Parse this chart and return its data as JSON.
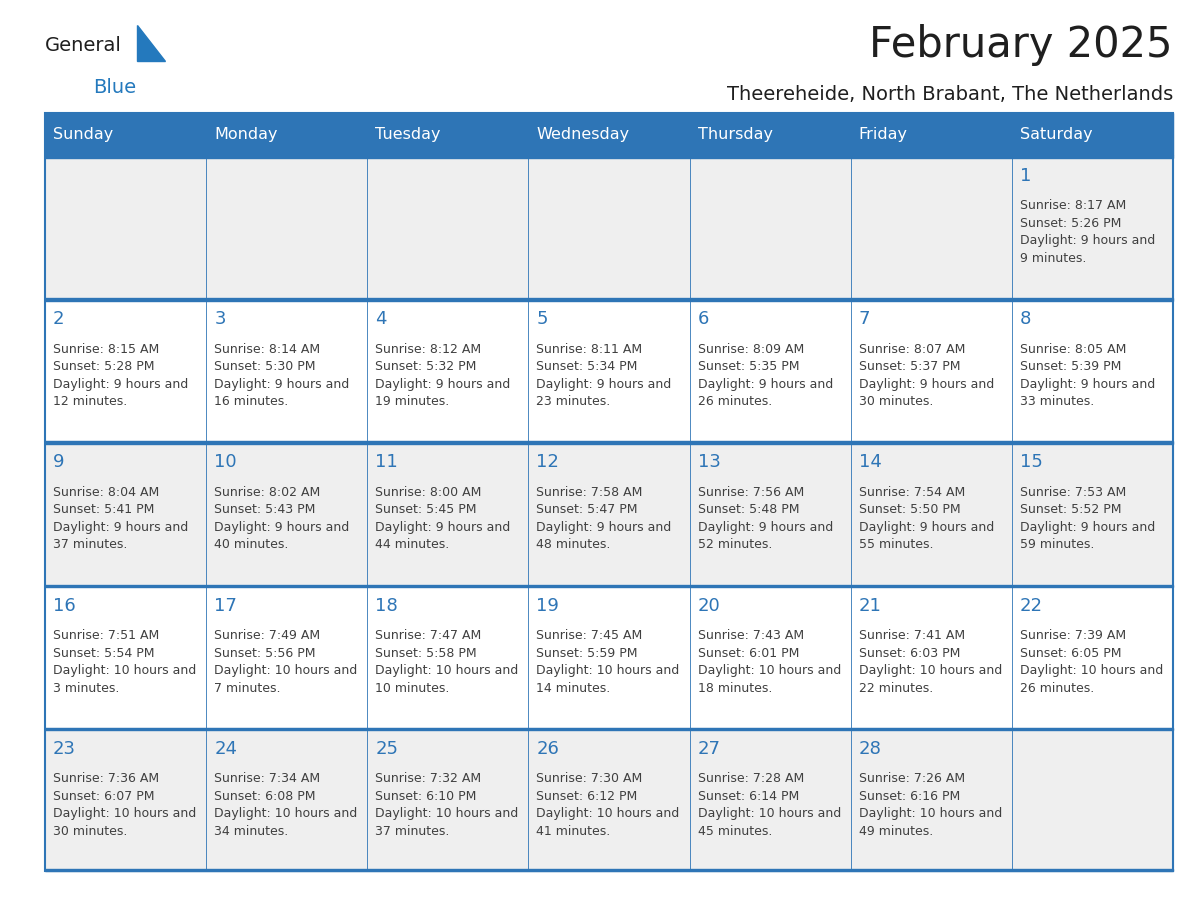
{
  "title": "February 2025",
  "subtitle": "Theereheide, North Brabant, The Netherlands",
  "header_bg": "#2E75B6",
  "header_text": "#FFFFFF",
  "cell_bg_white": "#FFFFFF",
  "cell_bg_gray": "#EFEFEF",
  "border_color": "#2E75B6",
  "day_headers": [
    "Sunday",
    "Monday",
    "Tuesday",
    "Wednesday",
    "Thursday",
    "Friday",
    "Saturday"
  ],
  "title_color": "#1F1F1F",
  "subtitle_color": "#1F1F1F",
  "number_color": "#2E75B6",
  "text_color": "#404040",
  "logo_general_color": "#1F1F1F",
  "logo_blue_color": "#2479BD",
  "days": [
    {
      "day": 1,
      "col": 6,
      "row": 0,
      "sunrise": "8:17 AM",
      "sunset": "5:26 PM",
      "daylight": "9 hours and 9 minutes."
    },
    {
      "day": 2,
      "col": 0,
      "row": 1,
      "sunrise": "8:15 AM",
      "sunset": "5:28 PM",
      "daylight": "9 hours and 12 minutes."
    },
    {
      "day": 3,
      "col": 1,
      "row": 1,
      "sunrise": "8:14 AM",
      "sunset": "5:30 PM",
      "daylight": "9 hours and 16 minutes."
    },
    {
      "day": 4,
      "col": 2,
      "row": 1,
      "sunrise": "8:12 AM",
      "sunset": "5:32 PM",
      "daylight": "9 hours and 19 minutes."
    },
    {
      "day": 5,
      "col": 3,
      "row": 1,
      "sunrise": "8:11 AM",
      "sunset": "5:34 PM",
      "daylight": "9 hours and 23 minutes."
    },
    {
      "day": 6,
      "col": 4,
      "row": 1,
      "sunrise": "8:09 AM",
      "sunset": "5:35 PM",
      "daylight": "9 hours and 26 minutes."
    },
    {
      "day": 7,
      "col": 5,
      "row": 1,
      "sunrise": "8:07 AM",
      "sunset": "5:37 PM",
      "daylight": "9 hours and 30 minutes."
    },
    {
      "day": 8,
      "col": 6,
      "row": 1,
      "sunrise": "8:05 AM",
      "sunset": "5:39 PM",
      "daylight": "9 hours and 33 minutes."
    },
    {
      "day": 9,
      "col": 0,
      "row": 2,
      "sunrise": "8:04 AM",
      "sunset": "5:41 PM",
      "daylight": "9 hours and 37 minutes."
    },
    {
      "day": 10,
      "col": 1,
      "row": 2,
      "sunrise": "8:02 AM",
      "sunset": "5:43 PM",
      "daylight": "9 hours and 40 minutes."
    },
    {
      "day": 11,
      "col": 2,
      "row": 2,
      "sunrise": "8:00 AM",
      "sunset": "5:45 PM",
      "daylight": "9 hours and 44 minutes."
    },
    {
      "day": 12,
      "col": 3,
      "row": 2,
      "sunrise": "7:58 AM",
      "sunset": "5:47 PM",
      "daylight": "9 hours and 48 minutes."
    },
    {
      "day": 13,
      "col": 4,
      "row": 2,
      "sunrise": "7:56 AM",
      "sunset": "5:48 PM",
      "daylight": "9 hours and 52 minutes."
    },
    {
      "day": 14,
      "col": 5,
      "row": 2,
      "sunrise": "7:54 AM",
      "sunset": "5:50 PM",
      "daylight": "9 hours and 55 minutes."
    },
    {
      "day": 15,
      "col": 6,
      "row": 2,
      "sunrise": "7:53 AM",
      "sunset": "5:52 PM",
      "daylight": "9 hours and 59 minutes."
    },
    {
      "day": 16,
      "col": 0,
      "row": 3,
      "sunrise": "7:51 AM",
      "sunset": "5:54 PM",
      "daylight": "10 hours and 3 minutes."
    },
    {
      "day": 17,
      "col": 1,
      "row": 3,
      "sunrise": "7:49 AM",
      "sunset": "5:56 PM",
      "daylight": "10 hours and 7 minutes."
    },
    {
      "day": 18,
      "col": 2,
      "row": 3,
      "sunrise": "7:47 AM",
      "sunset": "5:58 PM",
      "daylight": "10 hours and 10 minutes."
    },
    {
      "day": 19,
      "col": 3,
      "row": 3,
      "sunrise": "7:45 AM",
      "sunset": "5:59 PM",
      "daylight": "10 hours and 14 minutes."
    },
    {
      "day": 20,
      "col": 4,
      "row": 3,
      "sunrise": "7:43 AM",
      "sunset": "6:01 PM",
      "daylight": "10 hours and 18 minutes."
    },
    {
      "day": 21,
      "col": 5,
      "row": 3,
      "sunrise": "7:41 AM",
      "sunset": "6:03 PM",
      "daylight": "10 hours and 22 minutes."
    },
    {
      "day": 22,
      "col": 6,
      "row": 3,
      "sunrise": "7:39 AM",
      "sunset": "6:05 PM",
      "daylight": "10 hours and 26 minutes."
    },
    {
      "day": 23,
      "col": 0,
      "row": 4,
      "sunrise": "7:36 AM",
      "sunset": "6:07 PM",
      "daylight": "10 hours and 30 minutes."
    },
    {
      "day": 24,
      "col": 1,
      "row": 4,
      "sunrise": "7:34 AM",
      "sunset": "6:08 PM",
      "daylight": "10 hours and 34 minutes."
    },
    {
      "day": 25,
      "col": 2,
      "row": 4,
      "sunrise": "7:32 AM",
      "sunset": "6:10 PM",
      "daylight": "10 hours and 37 minutes."
    },
    {
      "day": 26,
      "col": 3,
      "row": 4,
      "sunrise": "7:30 AM",
      "sunset": "6:12 PM",
      "daylight": "10 hours and 41 minutes."
    },
    {
      "day": 27,
      "col": 4,
      "row": 4,
      "sunrise": "7:28 AM",
      "sunset": "6:14 PM",
      "daylight": "10 hours and 45 minutes."
    },
    {
      "day": 28,
      "col": 5,
      "row": 4,
      "sunrise": "7:26 AM",
      "sunset": "6:16 PM",
      "daylight": "10 hours and 49 minutes."
    }
  ]
}
